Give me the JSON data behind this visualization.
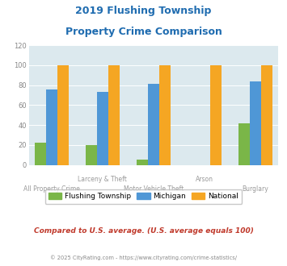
{
  "title_line1": "2019 Flushing Township",
  "title_line2": "Property Crime Comparison",
  "flushing": [
    22,
    20,
    5,
    0,
    42
  ],
  "michigan": [
    76,
    73,
    81,
    0,
    84
  ],
  "national": [
    100,
    100,
    100,
    100,
    100
  ],
  "flushing_color": "#7ab648",
  "michigan_color": "#4f97d6",
  "national_color": "#f5a623",
  "bg_color": "#dce9ee",
  "ylim": [
    0,
    120
  ],
  "yticks": [
    0,
    20,
    40,
    60,
    80,
    100,
    120
  ],
  "bar_width": 0.22,
  "group_labels_top": [
    "",
    "Larceny & Theft",
    "",
    "Arson",
    ""
  ],
  "group_labels_bot": [
    "All Property Crime",
    "",
    "Motor Vehicle Theft",
    "",
    "Burglary"
  ],
  "subtitle": "Compared to U.S. average. (U.S. average equals 100)",
  "footer": "© 2025 CityRating.com - https://www.cityrating.com/crime-statistics/",
  "legend_labels": [
    "Flushing Township",
    "Michigan",
    "National"
  ],
  "title_color": "#1f6cb0",
  "subtitle_color": "#c0392b",
  "footer_color": "#888888"
}
